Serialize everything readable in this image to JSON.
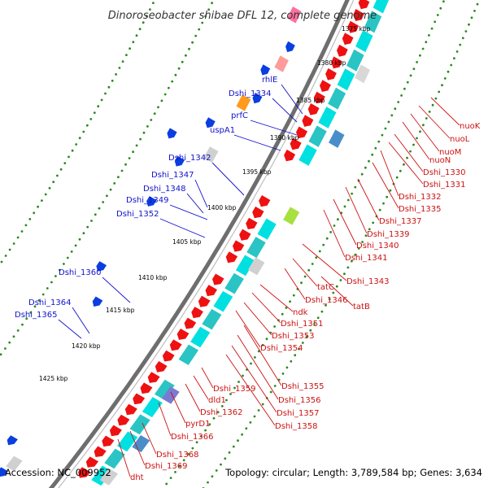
{
  "title": "Dinoroseobacter shibae DFL 12, complete genome",
  "footer": {
    "accession": "Accession: NC_009952",
    "topology": "Topology: circular; Length: 3,789,584 bp; Genes: 3,634"
  },
  "colors": {
    "backbone": "#6e6e6e",
    "dots": "#2a8a1e",
    "gene_fwd": "#ee1111",
    "label_neg": "#1111cc",
    "label_pos": "#cc1111",
    "cds": "#00e0e0",
    "rna": "#d0d0d0"
  },
  "ticks": [
    "1375 kbp",
    "1380 kbp",
    "1385 kbp",
    "1390 kbp",
    "1395 kbp",
    "1400 kbp",
    "1405 kbp",
    "1410 kbp",
    "1415 kbp",
    "1420 kbp",
    "1425 kbp"
  ],
  "labels_neg": [
    "rhlE",
    "Dshi_1334",
    "prfC",
    "uspA1",
    "Dshi_1342",
    "Dshi_1347",
    "Dshi_1348",
    "Dshi_1349",
    "Dshi_1352",
    "Dshi_1360",
    "Dshi_1364",
    "Dshi_1365"
  ],
  "labels_pos": [
    "nuoK",
    "nuoL",
    "nuoM",
    "nuoN",
    "Dshi_1330",
    "Dshi_1331",
    "Dshi_1332",
    "Dshi_1335",
    "Dshi_1337",
    "Dshi_1339",
    "Dshi_1340",
    "Dshi_1341",
    "Dshi_1343",
    "tatB",
    "tatC",
    "Dshi_1346",
    "ndk",
    "Dshi_1351",
    "Dshi_1353",
    "Dshi_1354",
    "Dshi_1355",
    "Dshi_1356",
    "Dshi_1357",
    "Dshi_1358",
    "Dshi_1359",
    "dld1",
    "Dshi_1362",
    "pyrD1",
    "Dshi_1366",
    "Dshi_1368",
    "Dshi_1369",
    "dht"
  ]
}
